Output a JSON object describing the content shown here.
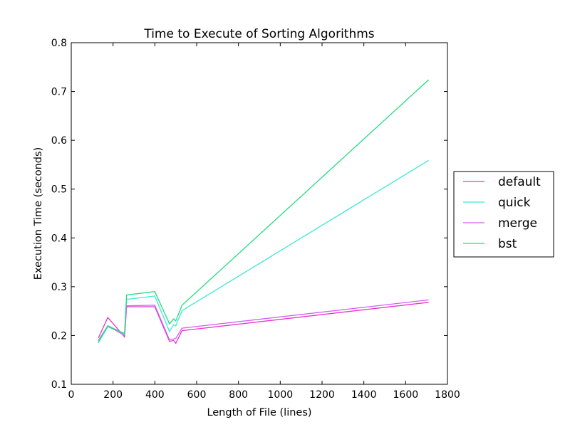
{
  "chart_data": {
    "type": "line",
    "title": "Time to Execute of Sorting Algorithms",
    "xlabel": "Length of File (lines)",
    "ylabel": "Execution Time (seconds)",
    "xlim": [
      0,
      1800
    ],
    "ylim": [
      0.1,
      0.8
    ],
    "xticks": [
      0,
      200,
      400,
      600,
      800,
      1000,
      1200,
      1400,
      1600,
      1800
    ],
    "yticks": [
      0.1,
      0.2,
      0.3,
      0.4,
      0.5,
      0.6,
      0.7,
      0.8
    ],
    "xtick_labels": [
      "0",
      "200",
      "400",
      "600",
      "800",
      "1000",
      "1200",
      "1400",
      "1600",
      "1800"
    ],
    "ytick_labels": [
      "0.1",
      "0.2",
      "0.3",
      "0.4",
      "0.5",
      "0.6",
      "0.7",
      "0.8"
    ],
    "grid": false,
    "legend_position": "outside-right",
    "series": [
      {
        "name": "default",
        "color": "#e835c9",
        "points": [
          [
            130,
            0.195
          ],
          [
            175,
            0.237
          ],
          [
            255,
            0.197
          ],
          [
            265,
            0.259
          ],
          [
            400,
            0.259
          ],
          [
            470,
            0.188
          ],
          [
            490,
            0.19
          ],
          [
            500,
            0.184
          ],
          [
            530,
            0.21
          ],
          [
            1710,
            0.268
          ]
        ]
      },
      {
        "name": "quick",
        "color": "#3de8d6",
        "points": [
          [
            130,
            0.185
          ],
          [
            175,
            0.218
          ],
          [
            255,
            0.203
          ],
          [
            265,
            0.274
          ],
          [
            400,
            0.281
          ],
          [
            470,
            0.208
          ],
          [
            490,
            0.222
          ],
          [
            500,
            0.22
          ],
          [
            530,
            0.251
          ],
          [
            1710,
            0.559
          ]
        ]
      },
      {
        "name": "merge",
        "color": "#d060f0",
        "points": [
          [
            130,
            0.19
          ],
          [
            175,
            0.22
          ],
          [
            255,
            0.2
          ],
          [
            265,
            0.261
          ],
          [
            400,
            0.262
          ],
          [
            470,
            0.191
          ],
          [
            490,
            0.193
          ],
          [
            500,
            0.194
          ],
          [
            530,
            0.215
          ],
          [
            1710,
            0.273
          ]
        ]
      },
      {
        "name": "bst",
        "color": "#22dc7c",
        "points": [
          [
            130,
            0.187
          ],
          [
            175,
            0.22
          ],
          [
            255,
            0.204
          ],
          [
            265,
            0.283
          ],
          [
            400,
            0.29
          ],
          [
            470,
            0.224
          ],
          [
            490,
            0.234
          ],
          [
            500,
            0.23
          ],
          [
            530,
            0.262
          ],
          [
            1710,
            0.724
          ]
        ]
      }
    ]
  }
}
